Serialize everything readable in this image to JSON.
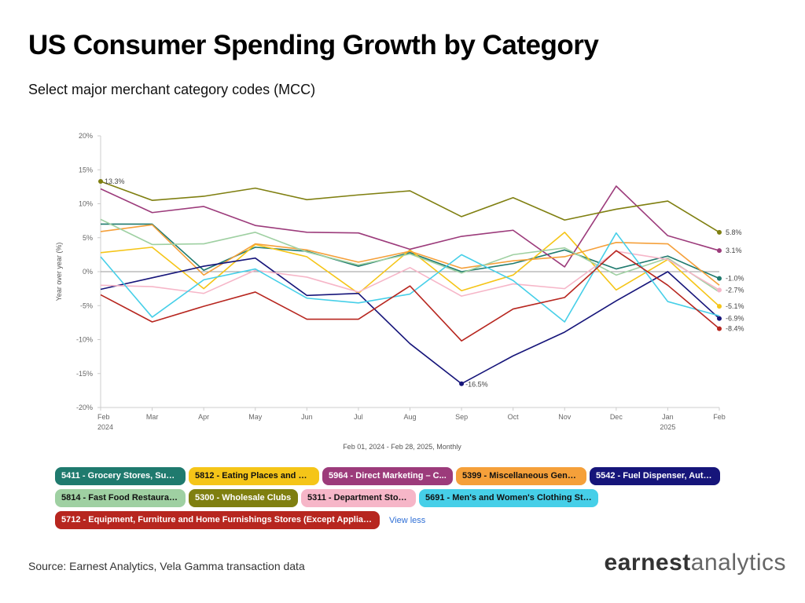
{
  "header": {
    "title": "US Consumer Spending Growth by Category",
    "subtitle": "Select major merchant category codes (MCC)"
  },
  "chart_data": {
    "type": "line",
    "ylabel": "Year over year (%)",
    "xlabel": "Feb 01, 2024 - Feb 28, 2025, Monthly",
    "x": [
      "Feb",
      "Mar",
      "Apr",
      "May",
      "Jun",
      "Jul",
      "Aug",
      "Sep",
      "Oct",
      "Nov",
      "Dec",
      "Jan",
      "Feb"
    ],
    "x_year_labels": {
      "0": "2024",
      "11": "2025"
    },
    "ylim": [
      -20,
      20
    ],
    "yticks": [
      20,
      15,
      10,
      5,
      0,
      -5,
      -10,
      -15,
      -20
    ],
    "ytick_labels": [
      "20%",
      "15%",
      "10%",
      "5%",
      "0%",
      "-5%",
      "-10%",
      "-15%",
      "-20%"
    ],
    "grid": false,
    "series": [
      {
        "name": "5411 - Grocery Stores, Supe...",
        "color": "#1f7a6e",
        "text": "#ffffff",
        "values": [
          7.0,
          7.0,
          0.2,
          3.6,
          3.0,
          0.8,
          2.8,
          0.0,
          1.2,
          3.2,
          0.4,
          2.3,
          -1.0
        ],
        "end_label": "-1.0%"
      },
      {
        "name": "5812 - Eating Places and Re...",
        "color": "#f5c518",
        "text": "#111111",
        "values": [
          2.8,
          3.6,
          -2.5,
          4.0,
          2.2,
          -3.2,
          3.2,
          -2.8,
          -0.5,
          5.8,
          -2.7,
          1.8,
          -5.1
        ],
        "end_label": "-5.1%"
      },
      {
        "name": "5964 - Direct Marketing – C...",
        "color": "#9c3b7b",
        "text": "#ffffff",
        "values": [
          12.2,
          8.7,
          9.6,
          6.8,
          5.8,
          5.7,
          3.3,
          5.2,
          6.1,
          0.7,
          12.6,
          5.3,
          3.1
        ],
        "end_label": "3.1%"
      },
      {
        "name": "5399 - Miscellaneous Genera...",
        "color": "#f5a03a",
        "text": "#111111",
        "values": [
          5.9,
          6.9,
          -0.5,
          4.1,
          3.2,
          1.4,
          3.0,
          0.5,
          1.6,
          2.2,
          4.3,
          4.1,
          -2.0
        ],
        "end_label": ""
      },
      {
        "name": "5542 - Fuel Dispenser, Auto...",
        "color": "#16157a",
        "text": "#ffffff",
        "values": [
          -2.6,
          -0.9,
          0.8,
          2.0,
          -3.5,
          -3.2,
          -10.6,
          -16.5,
          -12.4,
          -8.9,
          -4.3,
          0.0,
          -6.9
        ],
        "end_label": "-6.9%",
        "min_label": "-16.5%",
        "min_index": 7
      },
      {
        "name": "5814 - Fast Food Restaurant...",
        "color": "#9fd0a2",
        "text": "#111111",
        "values": [
          7.7,
          4.0,
          4.1,
          5.8,
          2.9,
          1.0,
          2.6,
          -0.2,
          2.5,
          3.5,
          -0.5,
          2.0,
          -3.0
        ],
        "end_label": ""
      },
      {
        "name": "5300 - Wholesale Clubs",
        "color": "#7f7f10",
        "text": "#ffffff",
        "values": [
          13.3,
          10.5,
          11.1,
          12.3,
          10.6,
          11.3,
          11.9,
          8.1,
          10.9,
          7.6,
          9.2,
          10.4,
          5.8
        ],
        "end_label": "5.8%",
        "start_label": "13.3%"
      },
      {
        "name": "5311 - Department Stores",
        "color": "#f6b6c8",
        "text": "#111111",
        "values": [
          -2.0,
          -2.2,
          -3.2,
          0.2,
          -0.8,
          -3.0,
          0.6,
          -3.6,
          -1.8,
          -2.5,
          3.0,
          1.8,
          -2.7
        ],
        "end_label": "-2.7%"
      },
      {
        "name": "5691 - Men's and Women's Clothing Stores",
        "color": "#46cfe8",
        "text": "#111111",
        "values": [
          2.2,
          -6.7,
          -1.2,
          0.4,
          -3.9,
          -4.6,
          -3.3,
          2.5,
          -1.3,
          -7.4,
          5.7,
          -4.4,
          -6.5
        ],
        "end_label": ""
      },
      {
        "name": "5712 - Equipment, Furniture and Home Furnishings Stores (Except Appliances)",
        "color": "#b7261f",
        "text": "#ffffff",
        "values": [
          -3.4,
          -7.4,
          -5.1,
          -3.0,
          -7.0,
          -7.0,
          -2.1,
          -10.2,
          -5.5,
          -3.8,
          3.1,
          -2.0,
          -8.4
        ],
        "end_label": "-8.4%"
      }
    ]
  },
  "legend": {
    "rows": [
      [
        0,
        1,
        2,
        3,
        4
      ],
      [
        5,
        6,
        7,
        8
      ],
      [
        9
      ]
    ],
    "view_less": "View less"
  },
  "footer": {
    "source": "Source: Earnest Analytics, Vela Gamma transaction data",
    "logo_bold": "earnest",
    "logo_light": "analytics"
  }
}
